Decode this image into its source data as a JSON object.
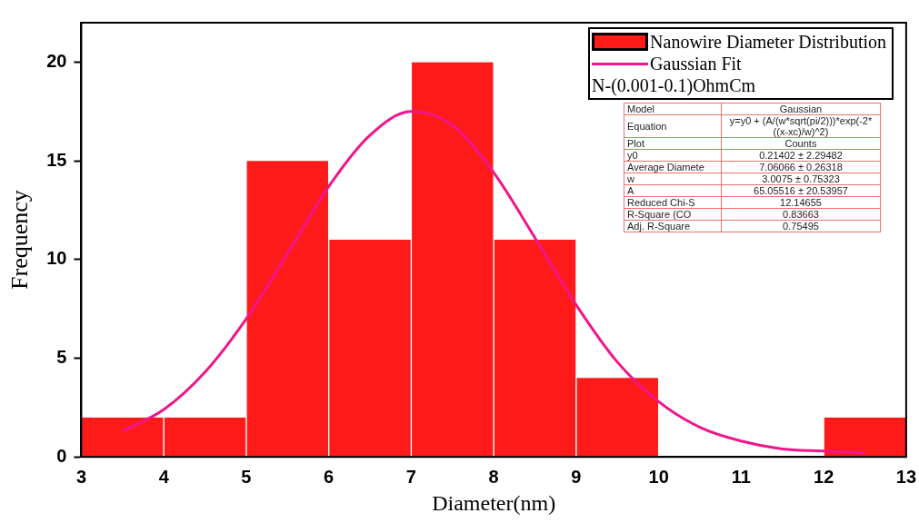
{
  "chart_data": {
    "type": "histogram",
    "xlabel": "Diameter(nm)",
    "ylabel": "Frequency",
    "bins": [
      3,
      4,
      5,
      6,
      7,
      8,
      9,
      10,
      11,
      12,
      13
    ],
    "series": [
      {
        "name": "Nanowire Diameter Distribution",
        "color": "#ff1a1a",
        "values": [
          2,
          2,
          15,
          11,
          20,
          11,
          4,
          0,
          0,
          2
        ]
      },
      {
        "name": "Gaussian Fit",
        "type": "line",
        "color": "#f0158c",
        "x": [
          3.5,
          4,
          4.5,
          5,
          5.5,
          6,
          6.5,
          7,
          7.5,
          8,
          8.5,
          9,
          9.5,
          10,
          10.5,
          11,
          11.5,
          12,
          12.5
        ],
        "values": [
          1.3,
          2.4,
          4.3,
          7.0,
          10.3,
          13.7,
          16.3,
          17.5,
          16.8,
          14.4,
          11.1,
          7.7,
          4.8,
          2.8,
          1.5,
          0.8,
          0.4,
          0.3,
          0.2
        ]
      }
    ],
    "xlim": [
      3,
      13
    ],
    "xticks": [
      3,
      4,
      5,
      6,
      7,
      8,
      9,
      10,
      11,
      12,
      13
    ],
    "ylim": [
      0,
      22
    ],
    "yticks": [
      0,
      5,
      10,
      15,
      20
    ],
    "grid": false,
    "legend": "top right",
    "annotations": [
      "N-(0.001-0.1)OhmCm",
      "Model",
      "Gaussian",
      "Equation",
      "y=y0 + (A/(w*sqrt(pi/2)))*exp(-2*((x-xc)/w)^2)",
      "Plot",
      "Counts",
      "y0",
      "0.21402 ± 2.29482",
      "Average Diamete",
      "7.06066 ± 0.26318",
      "w",
      "3.0075 ± 0.75323",
      "A",
      "65.05516 ± 20.53957",
      "Reduced Chi-S",
      "12.14655",
      "R-Square (CO",
      "0.83663",
      "Adj. R-Square",
      "0.75495"
    ]
  }
}
